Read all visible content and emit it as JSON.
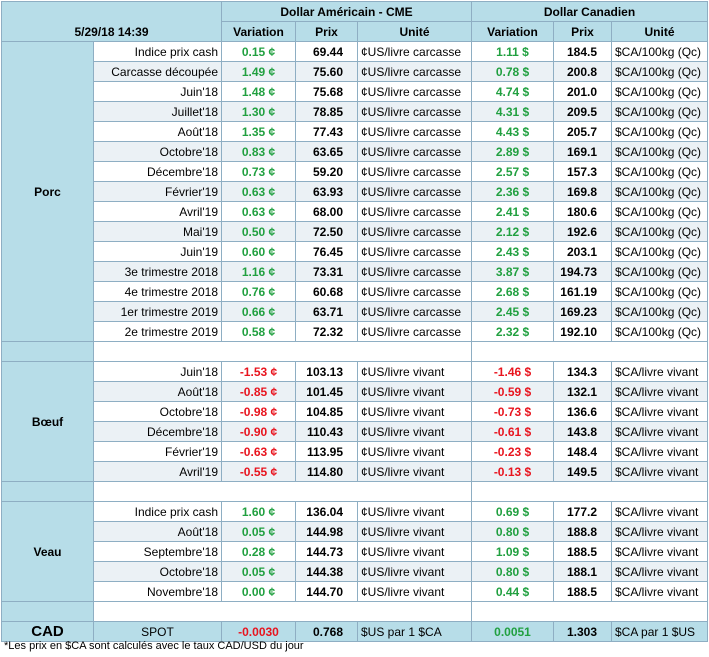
{
  "header": {
    "timestamp": "5/29/18 14:39",
    "us_title": "Dollar Américain - CME",
    "ca_title": "Dollar Canadien",
    "col_variation": "Variation",
    "col_prix": "Prix",
    "col_unite": "Unité"
  },
  "sections": [
    {
      "name": "Porc",
      "rows": [
        {
          "label": "Indice prix cash",
          "us_var": "0.15 ¢",
          "us_price": "69.44",
          "us_unit": "¢US/livre carcasse",
          "ca_var": "1.11 $",
          "ca_price": "184.5",
          "ca_unit": "$CA/100kg (Qc)",
          "trend": "up"
        },
        {
          "label": "Carcasse découpée",
          "us_var": "1.49 ¢",
          "us_price": "75.60",
          "us_unit": "¢US/livre carcasse",
          "ca_var": "0.78 $",
          "ca_price": "200.8",
          "ca_unit": "$CA/100kg (Qc)",
          "trend": "up"
        },
        {
          "label": "Juin'18",
          "us_var": "1.48 ¢",
          "us_price": "75.68",
          "us_unit": "¢US/livre carcasse",
          "ca_var": "4.74 $",
          "ca_price": "201.0",
          "ca_unit": "$CA/100kg (Qc)",
          "trend": "up"
        },
        {
          "label": "Juillet'18",
          "us_var": "1.30 ¢",
          "us_price": "78.85",
          "us_unit": "¢US/livre carcasse",
          "ca_var": "4.31 $",
          "ca_price": "209.5",
          "ca_unit": "$CA/100kg (Qc)",
          "trend": "up"
        },
        {
          "label": "Août'18",
          "us_var": "1.35 ¢",
          "us_price": "77.43",
          "us_unit": "¢US/livre carcasse",
          "ca_var": "4.43 $",
          "ca_price": "205.7",
          "ca_unit": "$CA/100kg (Qc)",
          "trend": "up"
        },
        {
          "label": "Octobre'18",
          "us_var": "0.83 ¢",
          "us_price": "63.65",
          "us_unit": "¢US/livre carcasse",
          "ca_var": "2.89 $",
          "ca_price": "169.1",
          "ca_unit": "$CA/100kg (Qc)",
          "trend": "up"
        },
        {
          "label": "Décembre'18",
          "us_var": "0.73 ¢",
          "us_price": "59.20",
          "us_unit": "¢US/livre carcasse",
          "ca_var": "2.57 $",
          "ca_price": "157.3",
          "ca_unit": "$CA/100kg (Qc)",
          "trend": "up"
        },
        {
          "label": "Février'19",
          "us_var": "0.63 ¢",
          "us_price": "63.93",
          "us_unit": "¢US/livre carcasse",
          "ca_var": "2.36 $",
          "ca_price": "169.8",
          "ca_unit": "$CA/100kg (Qc)",
          "trend": "up"
        },
        {
          "label": "Avril'19",
          "us_var": "0.63 ¢",
          "us_price": "68.00",
          "us_unit": "¢US/livre carcasse",
          "ca_var": "2.41 $",
          "ca_price": "180.6",
          "ca_unit": "$CA/100kg (Qc)",
          "trend": "up"
        },
        {
          "label": "Mai'19",
          "us_var": "0.50 ¢",
          "us_price": "72.50",
          "us_unit": "¢US/livre carcasse",
          "ca_var": "2.12 $",
          "ca_price": "192.6",
          "ca_unit": "$CA/100kg (Qc)",
          "trend": "up"
        },
        {
          "label": "Juin'19",
          "us_var": "0.60 ¢",
          "us_price": "76.45",
          "us_unit": "¢US/livre carcasse",
          "ca_var": "2.43 $",
          "ca_price": "203.1",
          "ca_unit": "$CA/100kg (Qc)",
          "trend": "up"
        },
        {
          "label": "3e trimestre 2018",
          "us_var": "1.16 ¢",
          "us_price": "73.31",
          "us_unit": "¢US/livre carcasse",
          "ca_var": "3.87 $",
          "ca_price": "194.73",
          "ca_unit": "$CA/100kg (Qc)",
          "trend": "up"
        },
        {
          "label": "4e trimestre 2018",
          "us_var": "0.76 ¢",
          "us_price": "60.68",
          "us_unit": "¢US/livre carcasse",
          "ca_var": "2.68 $",
          "ca_price": "161.19",
          "ca_unit": "$CA/100kg (Qc)",
          "trend": "up"
        },
        {
          "label": "1er trimestre 2019",
          "us_var": "0.66 ¢",
          "us_price": "63.71",
          "us_unit": "¢US/livre carcasse",
          "ca_var": "2.45 $",
          "ca_price": "169.23",
          "ca_unit": "$CA/100kg (Qc)",
          "trend": "up"
        },
        {
          "label": "2e trimestre 2019",
          "us_var": "0.58 ¢",
          "us_price": "72.32",
          "us_unit": "¢US/livre carcasse",
          "ca_var": "2.32 $",
          "ca_price": "192.10",
          "ca_unit": "$CA/100kg (Qc)",
          "trend": "up"
        }
      ]
    },
    {
      "name": "Bœuf",
      "rows": [
        {
          "label": "Juin'18",
          "us_var": "-1.53 ¢",
          "us_price": "103.13",
          "us_unit": "¢US/livre vivant",
          "ca_var": "-1.46 $",
          "ca_price": "134.3",
          "ca_unit": "$CA/livre vivant",
          "trend": "down"
        },
        {
          "label": "Août'18",
          "us_var": "-0.85 ¢",
          "us_price": "101.45",
          "us_unit": "¢US/livre vivant",
          "ca_var": "-0.59 $",
          "ca_price": "132.1",
          "ca_unit": "$CA/livre vivant",
          "trend": "down"
        },
        {
          "label": "Octobre'18",
          "us_var": "-0.98 ¢",
          "us_price": "104.85",
          "us_unit": "¢US/livre vivant",
          "ca_var": "-0.73 $",
          "ca_price": "136.6",
          "ca_unit": "$CA/livre vivant",
          "trend": "down"
        },
        {
          "label": "Décembre'18",
          "us_var": "-0.90 ¢",
          "us_price": "110.43",
          "us_unit": "¢US/livre vivant",
          "ca_var": "-0.61 $",
          "ca_price": "143.8",
          "ca_unit": "$CA/livre vivant",
          "trend": "down"
        },
        {
          "label": "Février'19",
          "us_var": "-0.63 ¢",
          "us_price": "113.95",
          "us_unit": "¢US/livre vivant",
          "ca_var": "-0.23 $",
          "ca_price": "148.4",
          "ca_unit": "$CA/livre vivant",
          "trend": "down"
        },
        {
          "label": "Avril'19",
          "us_var": "-0.55 ¢",
          "us_price": "114.80",
          "us_unit": "¢US/livre vivant",
          "ca_var": "-0.13 $",
          "ca_price": "149.5",
          "ca_unit": "$CA/livre vivant",
          "trend": "down"
        }
      ]
    },
    {
      "name": "Veau",
      "rows": [
        {
          "label": "Indice prix cash",
          "us_var": "1.60 ¢",
          "us_price": "136.04",
          "us_unit": "¢US/livre vivant",
          "ca_var": "0.69 $",
          "ca_price": "177.2",
          "ca_unit": "$CA/livre vivant",
          "trend": "up"
        },
        {
          "label": "Août'18",
          "us_var": "0.05 ¢",
          "us_price": "144.98",
          "us_unit": "¢US/livre vivant",
          "ca_var": "0.80 $",
          "ca_price": "188.8",
          "ca_unit": "$CA/livre vivant",
          "trend": "up"
        },
        {
          "label": "Septembre'18",
          "us_var": "0.28 ¢",
          "us_price": "144.73",
          "us_unit": "¢US/livre vivant",
          "ca_var": "1.09 $",
          "ca_price": "188.5",
          "ca_unit": "$CA/livre vivant",
          "trend": "up"
        },
        {
          "label": "Octobre'18",
          "us_var": "0.05 ¢",
          "us_price": "144.38",
          "us_unit": "¢US/livre vivant",
          "ca_var": "0.80 $",
          "ca_price": "188.1",
          "ca_unit": "$CA/livre vivant",
          "trend": "up"
        },
        {
          "label": "Novembre'18",
          "us_var": "0.00 ¢",
          "us_price": "144.70",
          "us_unit": "¢US/livre vivant",
          "ca_var": "0.44 $",
          "ca_price": "188.5",
          "ca_unit": "$CA/livre vivant",
          "trend": "up"
        }
      ]
    }
  ],
  "cad": {
    "name": "CAD",
    "label": "SPOT",
    "us_var": "-0.0030",
    "us_price": "0.768",
    "us_unit": "$US par 1 $CA",
    "ca_var": "0.0051",
    "ca_price": "1.303",
    "ca_unit": "$CA par 1 $US"
  },
  "footnote": "*Les prix en $CA sont calculés avec le taux CAD/USD du jour",
  "colors": {
    "up": "#21a040",
    "down": "#e8141e",
    "header_bg": "#b7dde8",
    "alt_row": "#ebf1f5"
  }
}
